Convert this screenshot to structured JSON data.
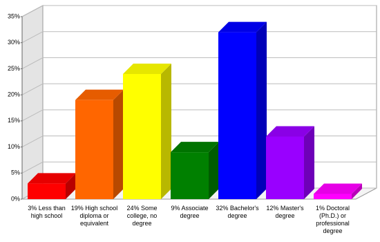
{
  "chart_data": {
    "type": "bar3d",
    "categories": [
      "3% Less than high school",
      "19% High school diploma or equivalent",
      "24% Some college, no degree",
      "9% Associate degree",
      "32% Bachelor's degree",
      "12% Master's degree",
      "1% Doctoral (Ph.D.) or professional degree"
    ],
    "values": [
      3,
      19,
      24,
      9,
      32,
      12,
      1
    ],
    "colors": [
      "#ff0000",
      "#ff6600",
      "#ffff00",
      "#008000",
      "#0000ff",
      "#9900ff",
      "#ff00ff"
    ],
    "ylim": [
      0,
      35
    ],
    "yticks": [
      {
        "value": 0,
        "label": "0%"
      },
      {
        "value": 5,
        "label": "5%"
      },
      {
        "value": 10,
        "label": "10%"
      },
      {
        "value": 15,
        "label": "15%"
      },
      {
        "value": 20,
        "label": "20%"
      },
      {
        "value": 25,
        "label": "25%"
      },
      {
        "value": 30,
        "label": "30%"
      },
      {
        "value": 35,
        "label": "35%"
      }
    ],
    "grid": true
  }
}
